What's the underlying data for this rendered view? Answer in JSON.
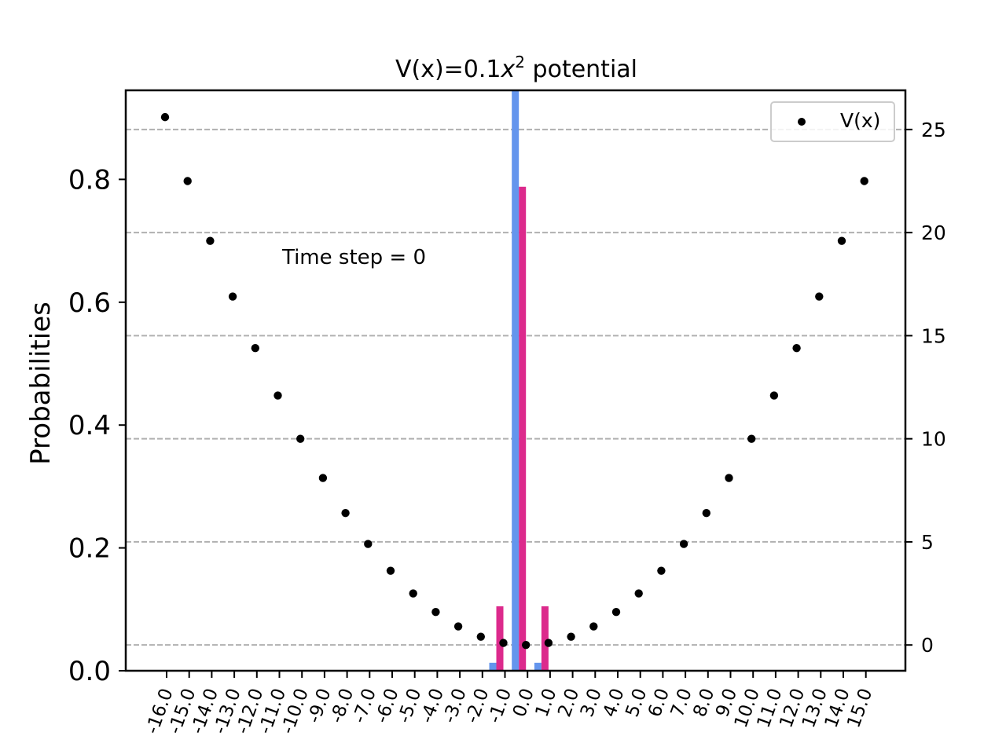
{
  "chart_data": {
    "type": "bar",
    "title_prefix": "V(x)=0.1",
    "title_var": "x",
    "title_exp": "2",
    "title_suffix": " potential",
    "ylabel": "Probabilities",
    "annotation": "Time step = 0",
    "legend_label": "V(x)",
    "legend_position": "top-right",
    "grid": "horizontal dashed (right axis)",
    "x_categories": [
      "-16.0",
      "-15.0",
      "-14.0",
      "-13.0",
      "-12.0",
      "-11.0",
      "-10.0",
      "-9.0",
      "-8.0",
      "-7.0",
      "-6.0",
      "-5.0",
      "-4.0",
      "-3.0",
      "-2.0",
      "-1.0",
      "0.0",
      "1.0",
      "2.0",
      "3.0",
      "4.0",
      "5.0",
      "6.0",
      "7.0",
      "8.0",
      "9.0",
      "10.0",
      "11.0",
      "12.0",
      "13.0",
      "14.0",
      "15.0"
    ],
    "left_ylim": [
      0,
      0.945
    ],
    "left_yticks": [
      "0.0",
      "0.2",
      "0.4",
      "0.6",
      "0.8"
    ],
    "right_ylim": [
      -1.25,
      26.9
    ],
    "right_yticks": [
      "0",
      "5",
      "10",
      "15",
      "20",
      "25"
    ],
    "series": [
      {
        "color": "#6495ed",
        "values": [
          0,
          0,
          0,
          0,
          0,
          0,
          0,
          0,
          0,
          0,
          0,
          0,
          0,
          0,
          0,
          0.013,
          0.945,
          0.013,
          0,
          0,
          0,
          0,
          0,
          0,
          0,
          0,
          0,
          0,
          0,
          0,
          0,
          0
        ]
      },
      {
        "color": "#dc2a8c",
        "values": [
          0,
          0,
          0,
          0,
          0,
          0,
          0,
          0,
          0,
          0,
          0,
          0,
          0,
          0,
          0,
          0.105,
          0.788,
          0.105,
          0,
          0,
          0,
          0,
          0,
          0,
          0,
          0,
          0,
          0,
          0,
          0,
          0,
          0
        ]
      }
    ],
    "potential": {
      "name": "V(x)",
      "color": "#000000",
      "values": [
        25.6,
        22.5,
        19.6,
        16.9,
        14.4,
        12.1,
        10.0,
        8.1,
        6.4,
        4.9,
        3.6,
        2.5,
        1.6,
        0.9,
        0.4,
        0.1,
        0.0,
        0.1,
        0.4,
        0.9,
        1.6,
        2.5,
        3.6,
        4.9,
        6.4,
        8.1,
        10.0,
        12.1,
        14.4,
        16.9,
        19.6,
        22.5
      ]
    }
  }
}
